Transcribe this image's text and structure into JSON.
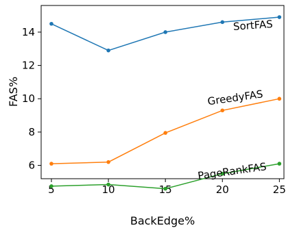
{
  "chart_data": {
    "type": "line",
    "title": "",
    "xlabel": "BackEdge%",
    "ylabel": "FAS%",
    "x": [
      5,
      10,
      15,
      20,
      25
    ],
    "xticks": [
      "5",
      "10",
      "15",
      "20",
      "25"
    ],
    "yticks": [
      "6",
      "8",
      "10",
      "12",
      "14"
    ],
    "xlim": [
      4.1,
      25.4
    ],
    "ylim": [
      5.2,
      15.6
    ],
    "grid": false,
    "legend": "none",
    "series": [
      {
        "name": "SortFAS",
        "color": "#1f77b4",
        "values": [
          14.5,
          12.9,
          14.0,
          14.6,
          14.9
        ]
      },
      {
        "name": "GreedyFAS",
        "color": "#ff7f0e",
        "values": [
          6.1,
          6.2,
          7.95,
          9.3,
          10.0
        ]
      },
      {
        "name": "PageRankFAS",
        "color": "#2ca02c",
        "values": [
          4.75,
          4.85,
          4.6,
          5.5,
          6.1
        ]
      }
    ]
  }
}
